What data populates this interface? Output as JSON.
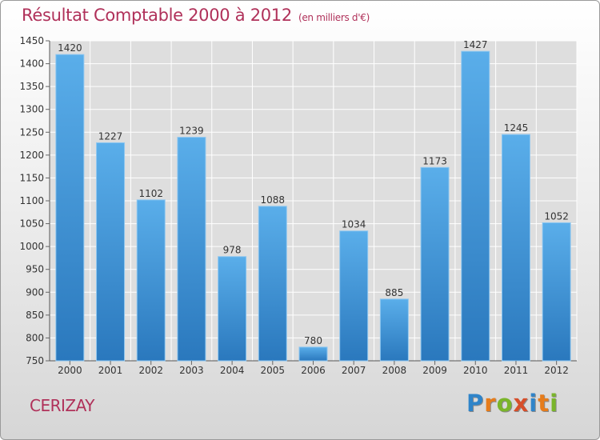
{
  "header": {
    "title": "Résultat Comptable 2000 à 2012",
    "unit": "(en milliers d'€)"
  },
  "footer": {
    "commune": "CERIZAY",
    "logo_text": "Proxiti"
  },
  "chart_data": {
    "type": "bar",
    "title": "Résultat Comptable 2000 à 2012",
    "subtitle": "(en milliers d'€)",
    "xlabel": "",
    "ylabel": "",
    "categories": [
      "2000",
      "2001",
      "2002",
      "2003",
      "2004",
      "2005",
      "2006",
      "2007",
      "2008",
      "2009",
      "2010",
      "2011",
      "2012"
    ],
    "values": [
      1420,
      1227,
      1102,
      1239,
      978,
      1088,
      780,
      1034,
      885,
      1173,
      1427,
      1245,
      1052
    ],
    "ylim": [
      750,
      1450
    ],
    "yticks": [
      750,
      800,
      850,
      900,
      950,
      1000,
      1050,
      1100,
      1150,
      1200,
      1250,
      1300,
      1350,
      1400,
      1450
    ],
    "grid": true,
    "bar_color": "#3a90d6"
  }
}
